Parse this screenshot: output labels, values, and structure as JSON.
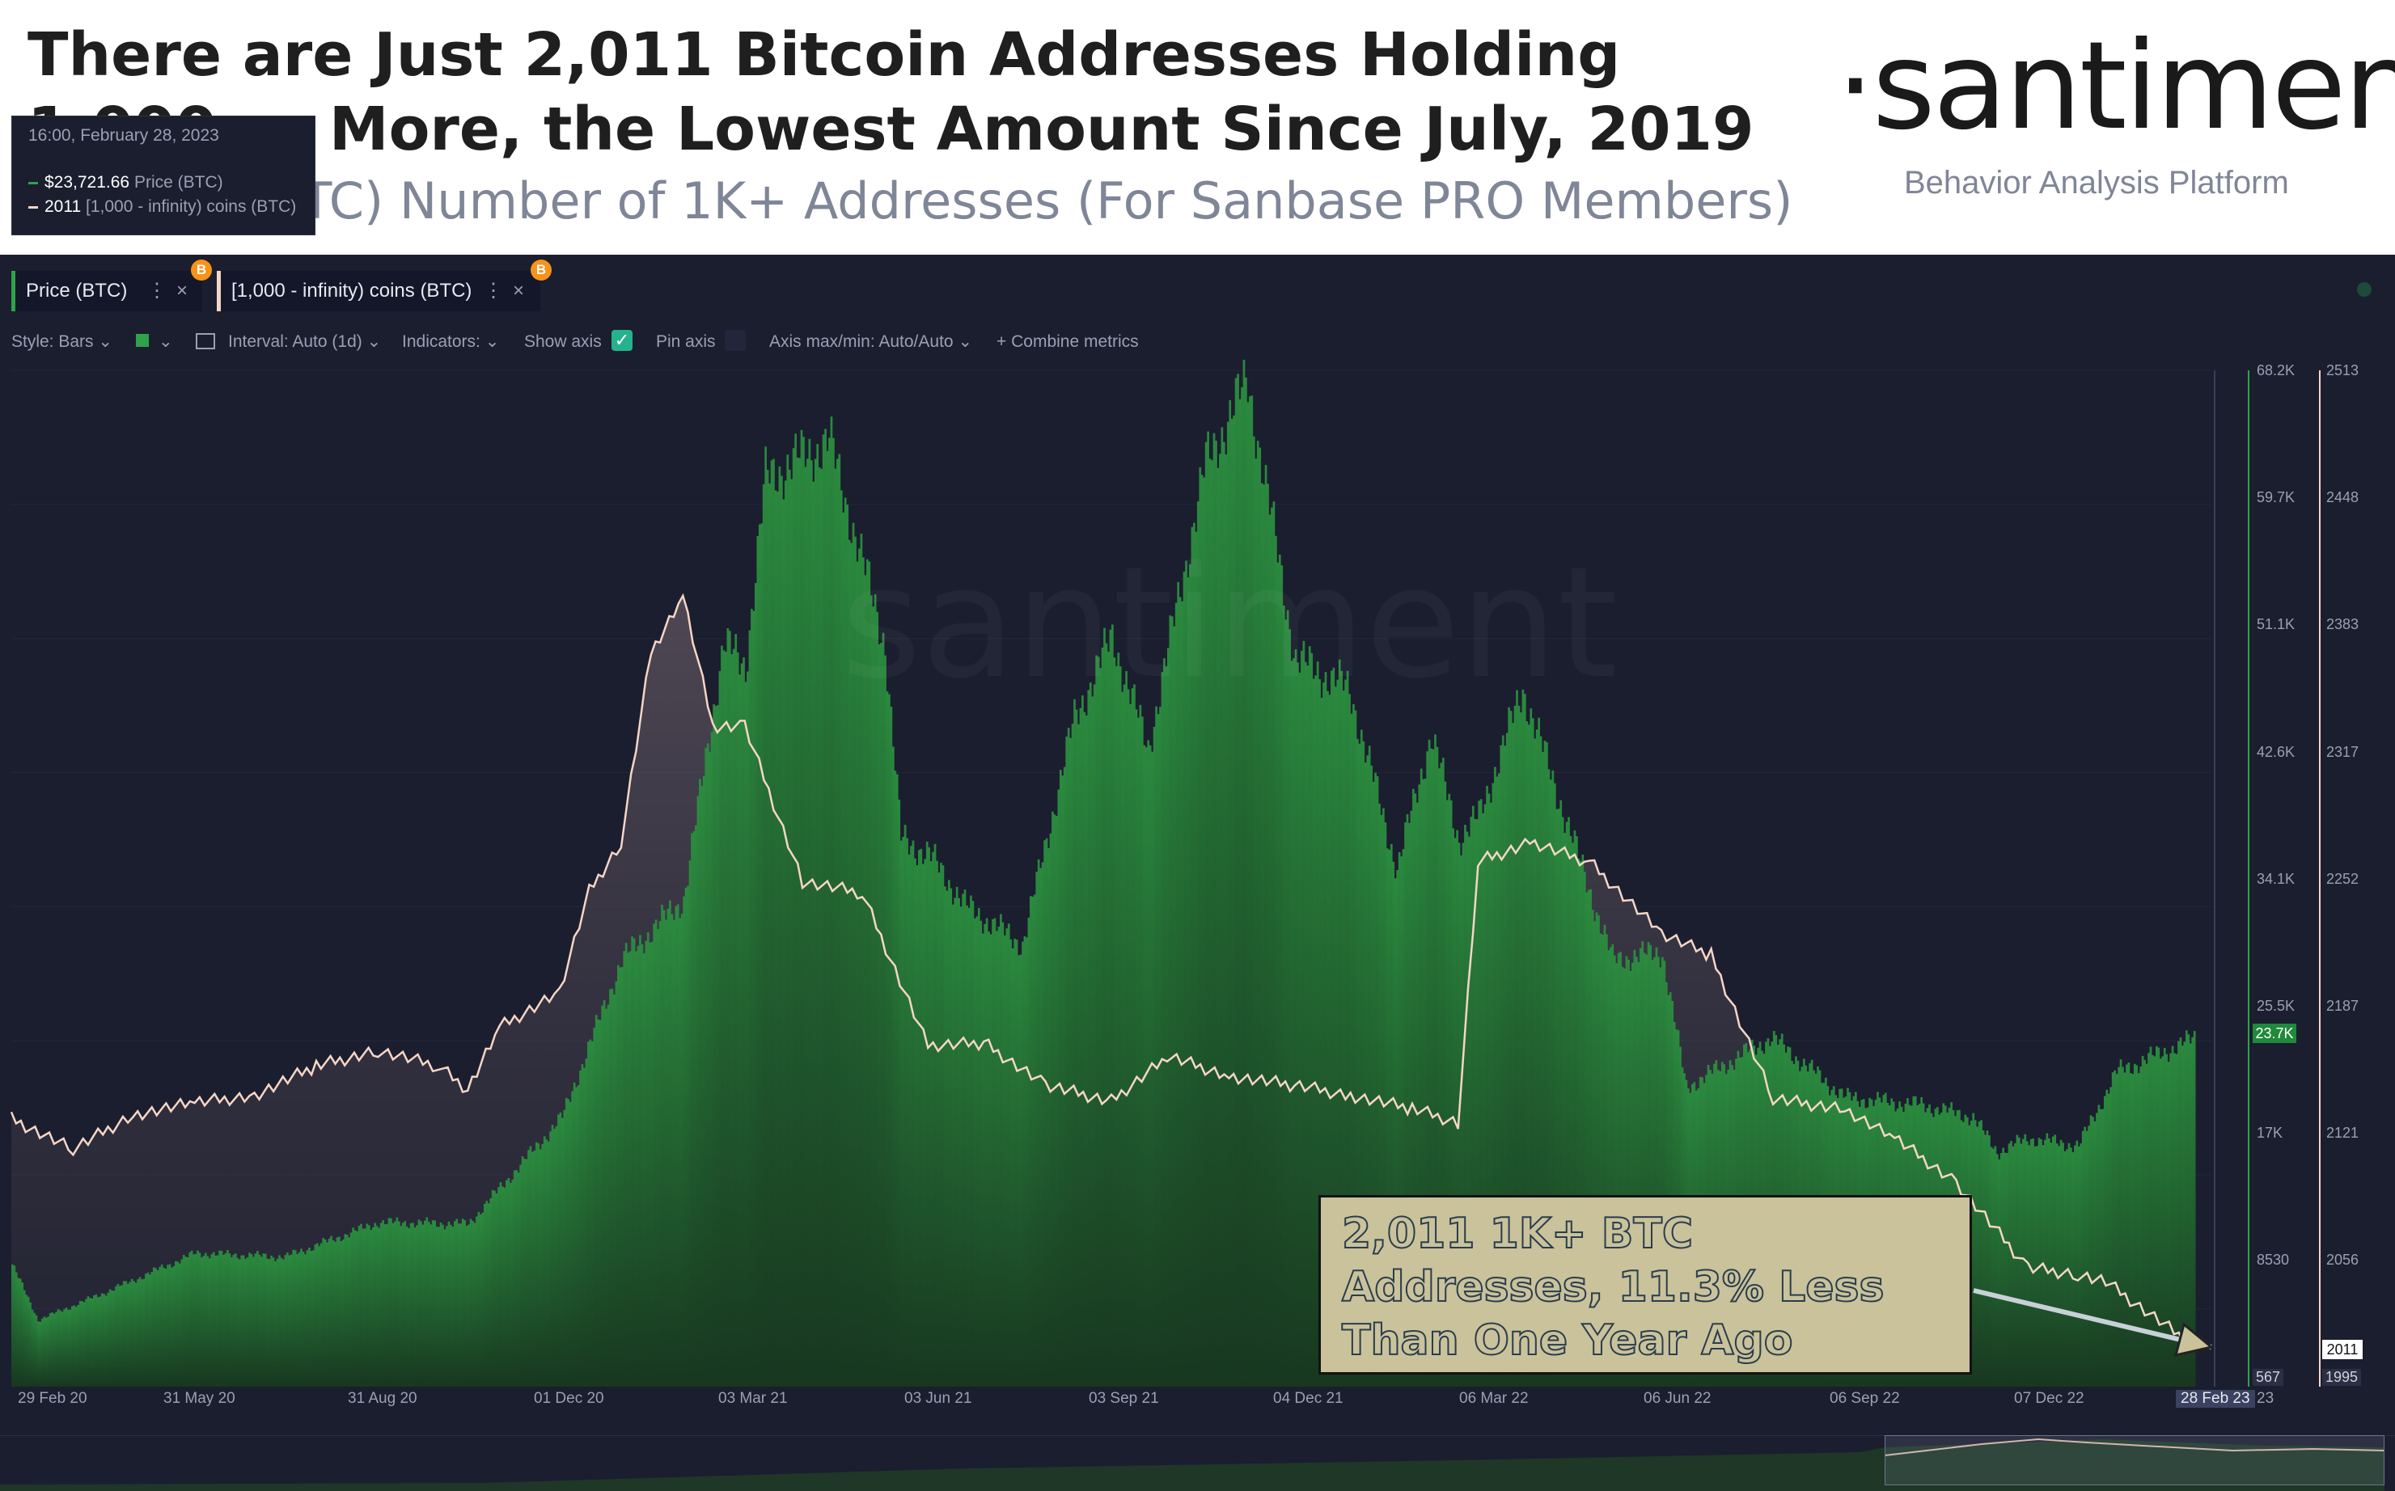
{
  "header": {
    "headline": "There are Just 2,011 Bitcoin Addresses Holding 1,000 or More, the Lowest Amount Since July, 2019",
    "subtitle": "Bitcoin ($BTC) Number of 1K+ Addresses (For Sanbase PRO Members)",
    "logo": "·santiment·",
    "logo_tagline": "Behavior Analysis Platform"
  },
  "tabs": [
    {
      "label": "Price (BTC)",
      "color": "#2fa24b",
      "badge": "B"
    },
    {
      "label": "[1,000 - infinity) coins (BTC)",
      "color": "#f5d6c6",
      "badge": "B"
    }
  ],
  "toolbar": {
    "style": "Style: Bars",
    "interval": "Interval: Auto (1d)",
    "indicators": "Indicators:",
    "show_axis": "Show axis",
    "pin_axis": "Pin axis",
    "axis_maxmin": "Axis max/min: Auto/Auto",
    "combine": "Combine metrics"
  },
  "legend": {
    "date": "16:00, February 28, 2023",
    "rows": [
      {
        "value": "$23,721.66",
        "label": "Price (BTC)",
        "color": "#2fa24b"
      },
      {
        "value": "2011",
        "label": "[1,000 - infinity) coins (BTC)",
        "color": "#f5d6c6"
      }
    ]
  },
  "watermark": "santiment",
  "annotation": "2,011 1K+ BTC Addresses, 11.3% Less Than One Year Ago",
  "badges": {
    "price_last": "23.7K",
    "count_last": "2011",
    "price_min": "567",
    "count_min": "1995",
    "last_date": "28 Feb 23"
  },
  "chart_data": {
    "type": "bar",
    "title": "Bitcoin ($BTC) Number of 1K+ Addresses",
    "x_ticks": [
      "29 Feb 20",
      "31 May 20",
      "31 Aug 20",
      "01 Dec 20",
      "03 Mar 21",
      "03 Jun 21",
      "03 Sep 21",
      "04 Dec 21",
      "06 Mar 22",
      "06 Jun 22",
      "06 Sep 22",
      "07 Dec 22",
      "23"
    ],
    "price_axis_ticks": [
      "68.2K",
      "59.7K",
      "51.1K",
      "42.6K",
      "34.1K",
      "25.5K",
      "17K",
      "8530"
    ],
    "count_axis_ticks": [
      "2513",
      "2448",
      "2383",
      "2317",
      "2252",
      "2187",
      "2121",
      "2056"
    ],
    "price_ylim": [
      567,
      68200
    ],
    "count_ylim": [
      1990,
      2513
    ],
    "series": [
      {
        "name": "Price (BTC)",
        "type": "bar",
        "color": "#2fa24b",
        "x": [
          "2020-02-29",
          "2020-03-13",
          "2020-04-15",
          "2020-05-31",
          "2020-07-15",
          "2020-08-31",
          "2020-10-15",
          "2020-12-01",
          "2020-12-31",
          "2021-01-31",
          "2021-02-20",
          "2021-03-03",
          "2021-03-13",
          "2021-04-14",
          "2021-05-12",
          "2021-05-20",
          "2021-06-03",
          "2021-06-22",
          "2021-07-20",
          "2021-08-15",
          "2021-09-03",
          "2021-09-21",
          "2021-10-20",
          "2021-11-10",
          "2021-12-04",
          "2021-12-31",
          "2022-01-24",
          "2022-02-10",
          "2022-02-24",
          "2022-03-06",
          "2022-03-28",
          "2022-05-12",
          "2022-06-06",
          "2022-06-18",
          "2022-07-31",
          "2022-09-06",
          "2022-10-15",
          "2022-11-09",
          "2022-11-21",
          "2022-12-07",
          "2023-01-01",
          "2023-01-20",
          "2023-02-28"
        ],
        "y": [
          8700,
          5000,
          6800,
          9450,
          9200,
          11500,
          11400,
          18500,
          29000,
          33000,
          50000,
          48500,
          61000,
          63500,
          50000,
          37000,
          36000,
          32500,
          30000,
          45000,
          50500,
          43000,
          62000,
          67500,
          49000,
          47000,
          35000,
          44000,
          37000,
          38500,
          47000,
          29000,
          29500,
          20500,
          23800,
          19800,
          19300,
          18500,
          16200,
          17100,
          16600,
          21500,
          23721.66
        ]
      },
      {
        "name": "[1,000 - infinity) coins (BTC)",
        "type": "line",
        "color": "#f5d6c6",
        "x": [
          "2020-02-29",
          "2020-03-31",
          "2020-04-30",
          "2020-05-31",
          "2020-06-30",
          "2020-07-31",
          "2020-08-31",
          "2020-09-30",
          "2020-10-15",
          "2020-10-31",
          "2020-11-30",
          "2020-12-15",
          "2020-12-31",
          "2021-01-15",
          "2021-01-31",
          "2021-02-15",
          "2021-03-03",
          "2021-04-01",
          "2021-05-01",
          "2021-06-03",
          "2021-07-01",
          "2021-08-01",
          "2021-09-03",
          "2021-10-01",
          "2021-11-01",
          "2021-12-04",
          "2022-01-01",
          "2022-02-01",
          "2022-02-24",
          "2022-03-06",
          "2022-04-01",
          "2022-05-01",
          "2022-06-06",
          "2022-07-01",
          "2022-08-01",
          "2022-09-06",
          "2022-10-01",
          "2022-11-01",
          "2022-12-07",
          "2023-01-01",
          "2023-01-15",
          "2023-02-28"
        ],
        "y": [
          2128,
          2112,
          2130,
          2136,
          2140,
          2155,
          2163,
          2155,
          2143,
          2175,
          2193,
          2245,
          2270,
          2368,
          2397,
          2330,
          2330,
          2250,
          2244,
          2165,
          2167,
          2145,
          2137,
          2160,
          2150,
          2145,
          2140,
          2133,
          2126,
          2260,
          2270,
          2260,
          2223,
          2212,
          2138,
          2133,
          2118,
          2095,
          2051,
          2048,
          2044,
          2011
        ]
      }
    ],
    "grid": true,
    "legend": "top-left"
  }
}
